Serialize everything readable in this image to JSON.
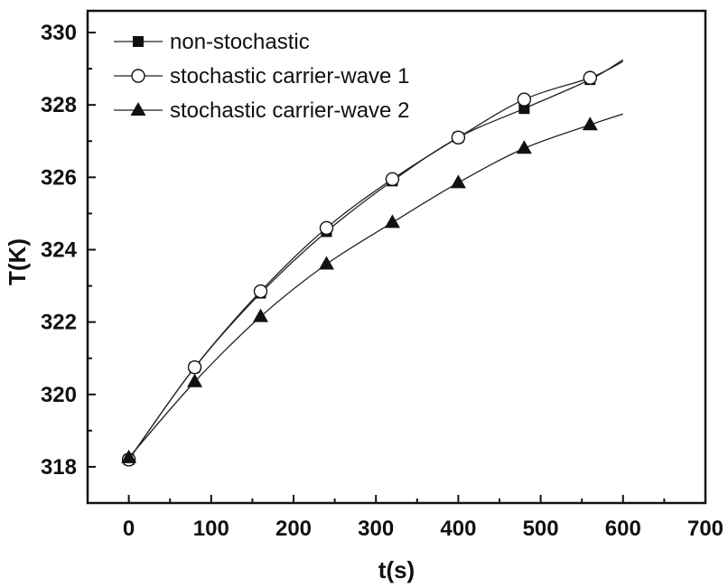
{
  "chart_data": {
    "type": "line",
    "xlabel": "t(s)",
    "ylabel": "T(K)",
    "xlim": [
      -50,
      700
    ],
    "ylim": [
      317,
      330.6
    ],
    "xticks": [
      0,
      100,
      200,
      300,
      400,
      500,
      600,
      700
    ],
    "yticks": [
      318,
      320,
      322,
      324,
      326,
      328,
      330
    ],
    "legend_position": "top-left",
    "grid": false,
    "series": [
      {
        "name": "non-stochastic",
        "marker": "filled-square",
        "x": [
          0,
          80,
          160,
          240,
          320,
          400,
          480,
          560
        ],
        "y": [
          318.2,
          320.75,
          322.8,
          324.5,
          325.9,
          327.1,
          327.9,
          328.7
        ],
        "curve_end": [
          600,
          329.25
        ]
      },
      {
        "name": "stochastic carrier-wave 1",
        "marker": "open-circle",
        "x": [
          0,
          80,
          160,
          240,
          320,
          400,
          480,
          560
        ],
        "y": [
          318.2,
          320.75,
          322.85,
          324.6,
          325.95,
          327.1,
          328.15,
          328.75
        ],
        "curve_end": [
          600,
          329.2
        ]
      },
      {
        "name": "stochastic carrier-wave 2",
        "marker": "filled-triangle",
        "x": [
          0,
          80,
          160,
          240,
          320,
          400,
          480,
          560
        ],
        "y": [
          318.25,
          320.35,
          322.15,
          323.6,
          324.75,
          325.85,
          326.8,
          327.45
        ],
        "curve_end": [
          600,
          327.75
        ]
      }
    ]
  }
}
